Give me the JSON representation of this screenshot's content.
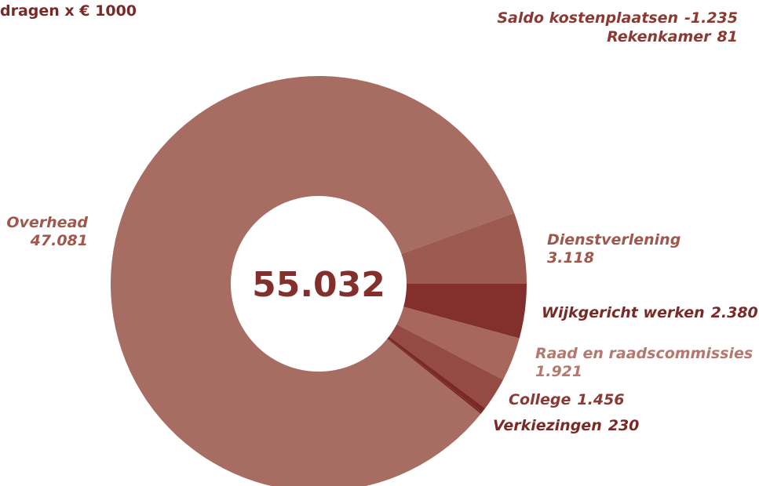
{
  "chart_data": {
    "type": "donut",
    "title": "dragen x € 1000",
    "categories": [
      "Dienstverlening",
      "Wijkgericht werken",
      "Raad en raadscommissies",
      "College",
      "Verkiezingen",
      "Rekenkamer",
      "Overhead",
      "Saldo kostenplaatsen"
    ],
    "values": [
      3118,
      2380,
      1921,
      1456,
      230,
      81,
      47081,
      -1235
    ],
    "value_labels": [
      "3.118",
      "2.380",
      "1.921",
      "1.456",
      "230",
      "81",
      "47.081",
      "-1.235"
    ],
    "colors": [
      "#9c5a50",
      "#83302c",
      "#a8675c",
      "#954a43",
      "#7a2a26",
      "#7a2a26",
      "#a86d62",
      "#8a3a33"
    ],
    "center_text": "55.032"
  }
}
